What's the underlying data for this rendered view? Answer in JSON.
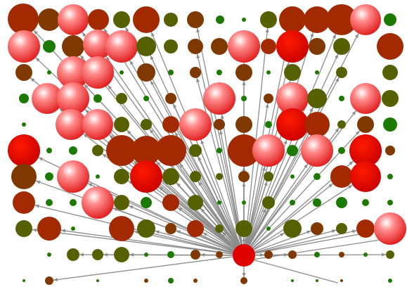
{
  "diagram": {
    "kind": "radial-network",
    "hub": {
      "style": "red-solid"
    },
    "palette": {
      "red-solid": "#e00000",
      "red-gloss": "#ff6666",
      "rust": "#a32a00",
      "brown": "#7e3800",
      "olive": "#566000",
      "green": "#1d7a00"
    }
  }
}
